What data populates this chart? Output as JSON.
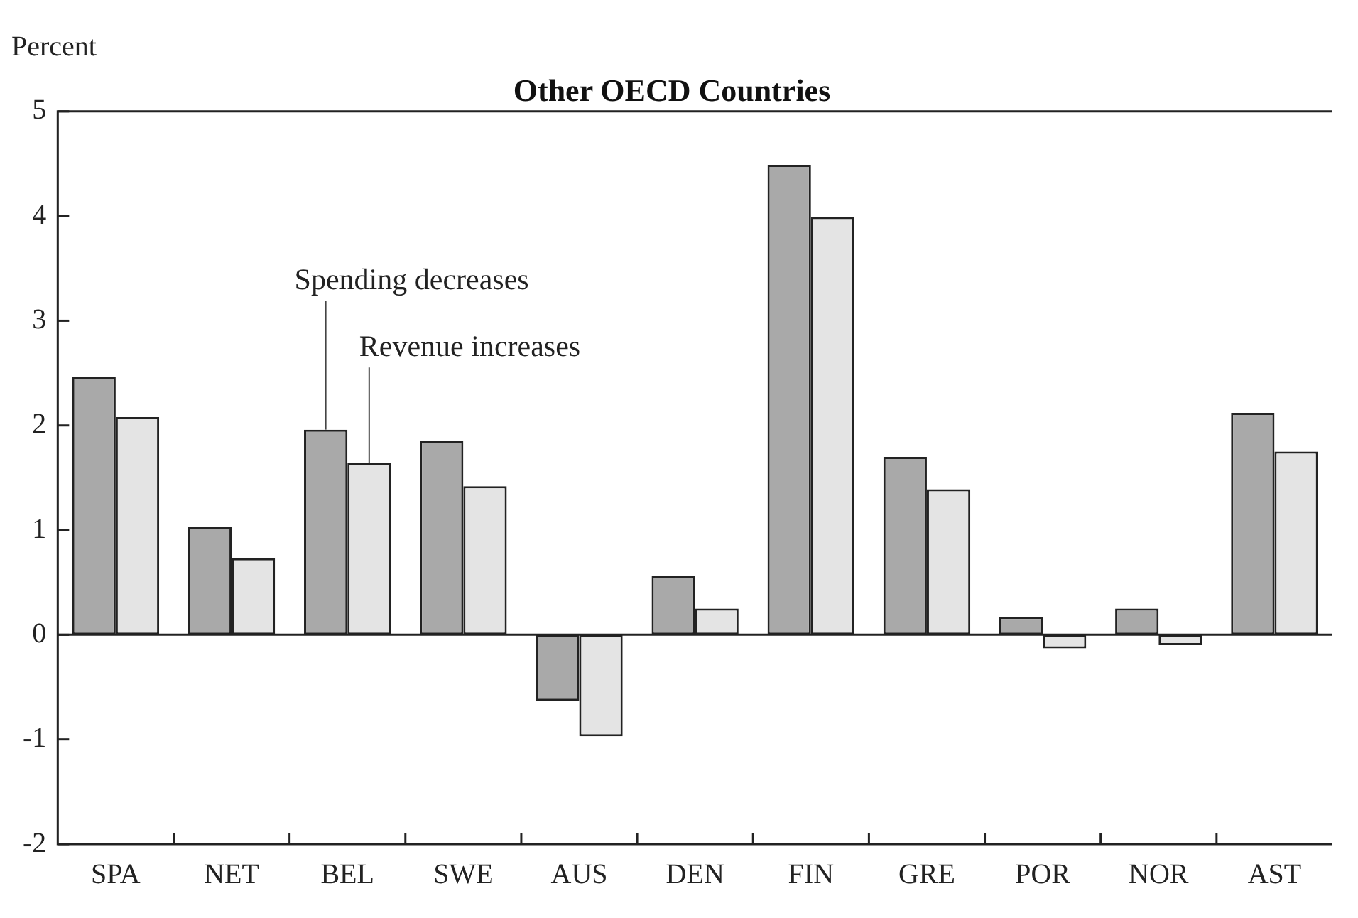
{
  "chart_data": {
    "type": "bar",
    "title": "Other OECD Countries",
    "ylabel": "Percent",
    "categories": [
      "SPA",
      "NET",
      "BEL",
      "SWE",
      "AUS",
      "DEN",
      "FIN",
      "GRE",
      "POR",
      "NOR",
      "AST"
    ],
    "series": [
      {
        "name": "Spending decreases",
        "color": "#a9a9a9",
        "values": [
          2.46,
          1.03,
          1.96,
          1.85,
          -0.63,
          0.56,
          4.49,
          1.7,
          0.17,
          0.25,
          2.12
        ]
      },
      {
        "name": "Revenue increases",
        "color": "#e4e4e4",
        "values": [
          2.08,
          0.73,
          1.64,
          1.42,
          -0.97,
          0.25,
          3.99,
          1.39,
          -0.13,
          -0.1,
          1.75
        ]
      }
    ],
    "ylim": [
      -2,
      5
    ],
    "yticks": [
      -2,
      -1,
      0,
      1,
      2,
      3,
      4,
      5
    ],
    "grid": false,
    "legend": false,
    "ref_lines": [
      {
        "axis": "y",
        "value": 0
      }
    ]
  }
}
